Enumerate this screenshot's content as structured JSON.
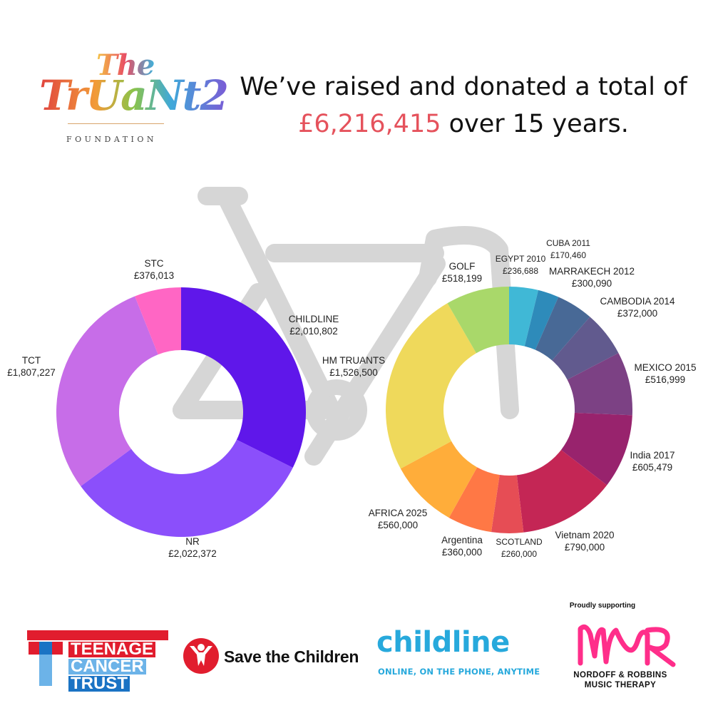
{
  "brand": {
    "logo_the": "The",
    "logo_truants": "TrUaNt2",
    "logo_foundation": "FOUNDATION"
  },
  "headline": {
    "line1": "We’ve raised and donated a total of",
    "amount": "£6,216,415",
    "line2_rest": " over 15 years.",
    "amount_color": "#e5525c"
  },
  "chart_data": [
    {
      "type": "pie",
      "style": "donut",
      "slices": [
        {
          "label": "CHILDLINE",
          "value_label": "£2,010,802",
          "value": 2010802,
          "color": "#5f17ea"
        },
        {
          "label": "NR",
          "value_label": "£2,022,372",
          "value": 2022372,
          "color": "#8b4ffb"
        },
        {
          "label": "TCT",
          "value_label": "£1,807,227",
          "value": 1807227,
          "color": "#c76de8"
        },
        {
          "label": "STC",
          "value_label": "£376,013",
          "value": 376013,
          "color": "#ff66c4"
        }
      ]
    },
    {
      "type": "pie",
      "style": "donut",
      "slices": [
        {
          "label": "EGYPT 2010",
          "value_label": "£236,688",
          "value": 236688,
          "color": "#40b8d6"
        },
        {
          "label": "CUBA 2011",
          "value_label": "£170,460",
          "value": 170460,
          "color": "#2e8bba"
        },
        {
          "label": "MARRAKECH 2012",
          "value_label": "£300,090",
          "value": 300090,
          "color": "#486996"
        },
        {
          "label": "CAMBODIA 2014",
          "value_label": "£372,000",
          "value": 372000,
          "color": "#615a8e"
        },
        {
          "label": "MEXICO 2015",
          "value_label": "£516,999",
          "value": 516999,
          "color": "#7c4184"
        },
        {
          "label": "India 2017",
          "value_label": "£605,479",
          "value": 605479,
          "color": "#98236d"
        },
        {
          "label": "Vietnam 2020",
          "value_label": "£790,000",
          "value": 790000,
          "color": "#c42655"
        },
        {
          "label": "SCOTLAND",
          "value_label": "£260,000",
          "value": 260000,
          "color": "#e64d55"
        },
        {
          "label": "Argentina",
          "value_label": "£360,000",
          "value": 360000,
          "color": "#ff7845"
        },
        {
          "label": "AFRICA 2025",
          "value_label": "£560,000",
          "value": 560000,
          "color": "#ffad3a"
        },
        {
          "label": "HM TRUANTS",
          "value_label": "£1,526,500",
          "value": 1526500,
          "color": "#efd95b"
        },
        {
          "label": "GOLF",
          "value_label": "£518,199",
          "value": 518199,
          "color": "#a9d86a"
        }
      ]
    }
  ],
  "partners": {
    "tct_words": [
      "TEENAGE",
      "CANCER",
      "TRUST"
    ],
    "stc_name": "Save the Children",
    "childline_name": "childline",
    "childline_tagline": "ONLINE, ON THE PHONE, ANYTIME",
    "nr_pre": "Proudly supporting",
    "nr_name_line1": "NORDOFF & ROBBINS",
    "nr_name_line2": "MUSIC THERAPY",
    "colors": {
      "tct_red": "#e11d2e",
      "tct_blue": "#1a73c4",
      "tct_light": "#6cb3e8",
      "stc_red": "#e11d2e",
      "childline_blue": "#27a9dc",
      "nr_pink": "#ff2e8a"
    }
  },
  "decor": {
    "bike_color": "#d6d6d6"
  }
}
